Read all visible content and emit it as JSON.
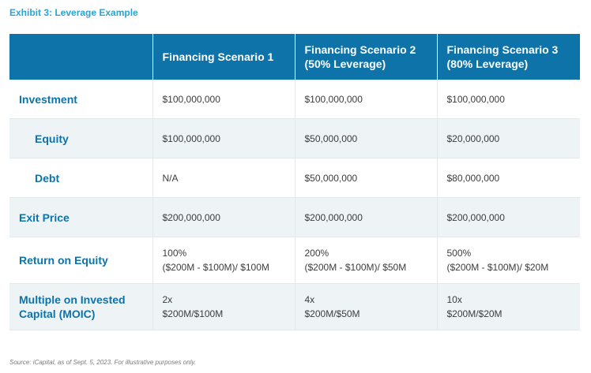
{
  "title": "Exhibit 3: Leverage Example",
  "table": {
    "headers": [
      "",
      "Financing Scenario 1",
      "Financing Scenario 2 (50% Leverage)",
      "Financing Scenario 3 (80% Leverage)"
    ],
    "rows": [
      {
        "label": "Investment",
        "cells": [
          [
            "$100,000,000"
          ],
          [
            "$100,000,000"
          ],
          [
            "$100,000,000"
          ]
        ]
      },
      {
        "label": "Equity",
        "cells": [
          [
            "$100,000,000"
          ],
          [
            "$50,000,000"
          ],
          [
            "$20,000,000"
          ]
        ]
      },
      {
        "label": "Debt",
        "cells": [
          [
            "N/A"
          ],
          [
            "$50,000,000"
          ],
          [
            "$80,000,000"
          ]
        ]
      },
      {
        "label": "Exit Price",
        "cells": [
          [
            "$200,000,000"
          ],
          [
            "$200,000,000"
          ],
          [
            "$200,000,000"
          ]
        ]
      },
      {
        "label": "Return on Equity",
        "cells": [
          [
            "100%",
            "($200M - $100M)/ $100M"
          ],
          [
            "200%",
            "($200M - $100M)/ $50M"
          ],
          [
            "500%",
            "($200M - $100M)/ $20M"
          ]
        ]
      },
      {
        "label": "Multiple on Invested Capital (MOIC)",
        "cells": [
          [
            "2x",
            "$200M/$100M"
          ],
          [
            "4x",
            "$200M/$50M"
          ],
          [
            "10x",
            "$200M/$20M"
          ]
        ]
      }
    ]
  },
  "source": "Source: iCapital, as of Sept. 5, 2023. For illustrative purposes only."
}
